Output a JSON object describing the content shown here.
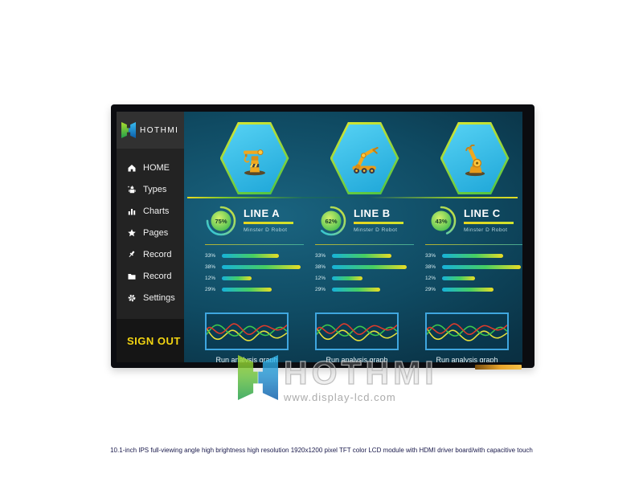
{
  "device": {
    "caption": "10.1-inch IPS full-viewing angle high brightness high resolution 1920x1200 pixel TFT color LCD module with HDMI driver board/with capacitive touch"
  },
  "watermark": {
    "brand": "HOTHMI",
    "site": "www.display-lcd.com"
  },
  "sidebar": {
    "brand": "HOTHMI",
    "items": [
      {
        "label": "HOME",
        "icon": "home-icon"
      },
      {
        "label": "Types",
        "icon": "robot-icon"
      },
      {
        "label": "Charts",
        "icon": "bar-chart-icon"
      },
      {
        "label": "Pages",
        "icon": "star-icon"
      },
      {
        "label": "Record",
        "icon": "pin-icon"
      },
      {
        "label": "Record",
        "icon": "folder-icon"
      },
      {
        "label": "Settings",
        "icon": "gear-icon"
      }
    ],
    "sign_out": "SIGN OUT"
  },
  "dashboard": {
    "colors": {
      "accent_yellow": "#e8d822",
      "hex_fill": "#35bdec",
      "hex_border": "#c8e636",
      "bar_gradient": [
        "#17b2da",
        "#46cf62",
        "#e9dc25"
      ],
      "wave_colors": {
        "red": "#e03a2a",
        "green": "#3cc84e",
        "yellow": "#e6e03a"
      },
      "screen_teal": "#0f4a62"
    },
    "lines": [
      {
        "title": "LINE A",
        "subtitle": "Minster D Robot",
        "progress_label": "75%",
        "progress_pct": 75,
        "bars": [
          {
            "label": "33%",
            "width_pct": 58
          },
          {
            "label": "38%",
            "width_pct": 80
          },
          {
            "label": "12%",
            "width_pct": 30
          },
          {
            "label": "29%",
            "width_pct": 50
          }
        ],
        "graph_label": "Run analysis graph"
      },
      {
        "title": "LINE B",
        "subtitle": "Minster D Robot",
        "progress_label": "62%",
        "progress_pct": 62,
        "bars": [
          {
            "label": "33%",
            "width_pct": 60
          },
          {
            "label": "38%",
            "width_pct": 76
          },
          {
            "label": "12%",
            "width_pct": 31
          },
          {
            "label": "29%",
            "width_pct": 49
          }
        ],
        "graph_label": "Run analysis graph"
      },
      {
        "title": "LINE C",
        "subtitle": "Minster D Robot",
        "progress_label": "43%",
        "progress_pct": 43,
        "bars": [
          {
            "label": "33%",
            "width_pct": 62
          },
          {
            "label": "38%",
            "width_pct": 80
          },
          {
            "label": "12%",
            "width_pct": 33
          },
          {
            "label": "29%",
            "width_pct": 52
          }
        ],
        "graph_label": "Run analysis graph"
      }
    ]
  }
}
